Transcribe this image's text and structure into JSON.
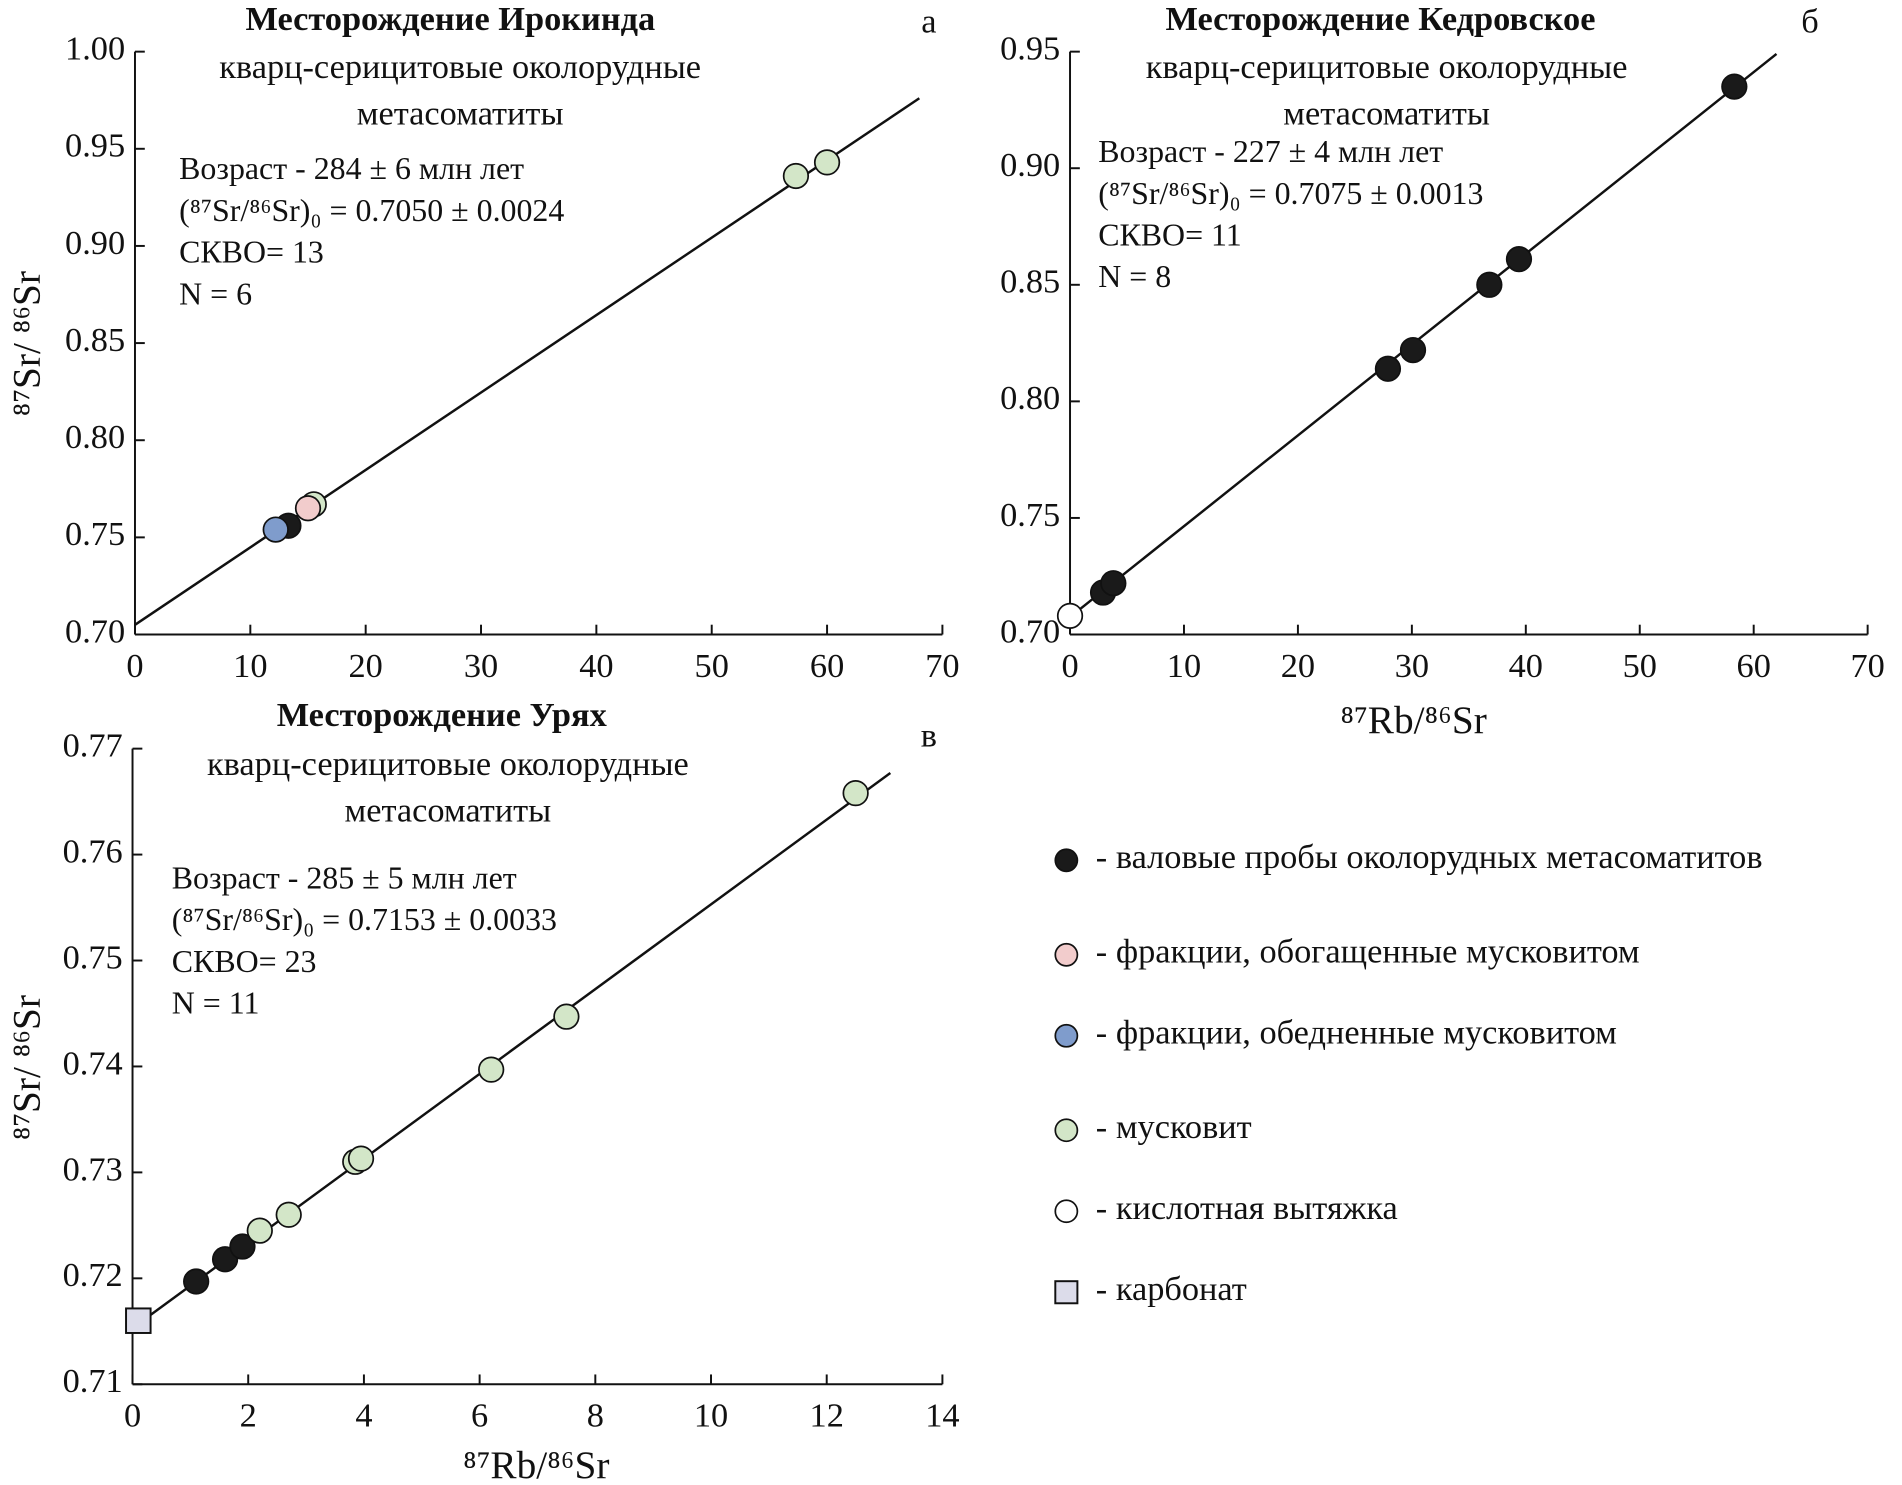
{
  "chart_data": [
    {
      "type": "scatter",
      "title": "Месторождение Ирокинда",
      "subtitle": [
        "кварц-серицитовые околорудные",
        "метасоматиты"
      ],
      "panel": "а",
      "annotations": [
        "Возраст - 284 ± 6 млн лет",
        "(⁸⁷Sr/⁸⁶Sr)₀ = 0.7050 ± 0.0024",
        "СКВО= 13",
        "N = 6"
      ],
      "ylabel": "⁸⁷Sr/ ⁸⁶Sr",
      "xlim": [
        0,
        70
      ],
      "ylim": [
        0.7,
        1.0
      ],
      "xticks": [
        0,
        10,
        20,
        30,
        40,
        50,
        60,
        70
      ],
      "yticks": [
        {
          "value": 0.7,
          "label": "0.70"
        },
        0.75,
        {
          "value": 0.8,
          "label": "0.80"
        },
        0.85,
        {
          "value": 0.9,
          "label": "0.90"
        },
        0.95,
        {
          "value": 1.0,
          "label": "1.00"
        }
      ],
      "fit": {
        "x": [
          0,
          68
        ],
        "values": [
          0.705,
          0.976
        ]
      },
      "series": [
        {
          "color": "#d3e6c8",
          "marker": "circle",
          "x": [
            15.5,
            57.3,
            60
          ],
          "values": [
            0.767,
            0.936,
            0.943
          ]
        },
        {
          "color": "#1a1a1a",
          "marker": "circle",
          "x": [
            13.3
          ],
          "values": [
            0.756
          ]
        },
        {
          "color": "#7f9ccc",
          "marker": "circle",
          "x": [
            12.2
          ],
          "values": [
            0.754
          ]
        },
        {
          "color": "#f2cccc",
          "marker": "circle",
          "x": [
            15
          ],
          "values": [
            0.765
          ]
        }
      ]
    },
    {
      "type": "scatter",
      "title": "Месторождение Кедровское",
      "subtitle": [
        "кварц-серицитовые околорудные",
        "метасоматиты"
      ],
      "panel": "б",
      "annotations": [
        "Возраст - 227 ± 4 млн лет",
        "(⁸⁷Sr/⁸⁶Sr)₀ = 0.7075 ± 0.0013",
        "СКВО= 11",
        "N = 8"
      ],
      "xlabel": "⁸⁷Rb/⁸⁶Sr",
      "xlim": [
        0,
        70
      ],
      "ylim": [
        0.7,
        0.95
      ],
      "xticks": [
        0,
        10,
        20,
        30,
        40,
        50,
        60,
        70
      ],
      "yticks": [
        {
          "value": 0.7,
          "label": "0.70"
        },
        0.75,
        {
          "value": 0.8,
          "label": "0.80"
        },
        0.85,
        {
          "value": 0.9,
          "label": "0.90"
        },
        0.95
      ],
      "fit": {
        "x": [
          0,
          62
        ],
        "values": [
          0.7075,
          0.949
        ]
      },
      "series": [
        {
          "color": "#ffffff",
          "marker": "circle",
          "x": [
            0
          ],
          "values": [
            0.708
          ]
        },
        {
          "color": "#1a1a1a",
          "marker": "circle",
          "x": [
            2.9,
            3.8,
            27.9,
            30.1,
            36.8,
            39.4,
            58.3
          ],
          "values": [
            0.718,
            0.722,
            0.814,
            0.822,
            0.85,
            0.861,
            0.935
          ]
        }
      ]
    },
    {
      "type": "scatter",
      "title": "Месторождение Урях",
      "subtitle": [
        "кварц-серицитовые околорудные",
        "метасоматиты"
      ],
      "panel": "в",
      "annotations": [
        "Возраст - 285 ± 5 млн лет",
        "(⁸⁷Sr/⁸⁶Sr)₀ = 0.7153 ± 0.0033",
        "СКВО= 23",
        "N = 11"
      ],
      "xlabel": "⁸⁷Rb/⁸⁶Sr",
      "ylabel": "⁸⁷Sr/ ⁸⁶Sr",
      "xlim": [
        0,
        14
      ],
      "ylim": [
        0.71,
        0.77
      ],
      "xticks": [
        0,
        2,
        4,
        6,
        8,
        10,
        12,
        14
      ],
      "yticks": [
        0.71,
        0.72,
        0.73,
        0.74,
        0.75,
        0.76,
        0.77
      ],
      "fit": {
        "x": [
          0,
          13.1
        ],
        "values": [
          0.7153,
          0.7677
        ]
      },
      "series": [
        {
          "color": "#dcdcea",
          "marker": "square",
          "x": [
            0.1
          ],
          "values": [
            0.716
          ]
        },
        {
          "color": "#1a1a1a",
          "marker": "circle",
          "x": [
            1.1,
            1.6,
            1.9
          ],
          "values": [
            0.7197,
            0.7218,
            0.723
          ]
        },
        {
          "color": "#d3e6c8",
          "marker": "circle",
          "x": [
            2.2,
            2.7,
            3.85,
            3.95,
            6.2,
            7.5,
            12.5
          ],
          "values": [
            0.7245,
            0.726,
            0.731,
            0.7313,
            0.7397,
            0.7447,
            0.7658
          ]
        }
      ]
    }
  ],
  "legend": [
    {
      "label": "- валовые пробы околорудных метасоматитов",
      "color": "#1a1a1a",
      "marker": "circle"
    },
    {
      "label": "- фракции, обогащенные мусковитом",
      "color": "#f2cccc",
      "marker": "circle"
    },
    {
      "label": "- фракции, обедненные мусковитом",
      "color": "#7f9ccc",
      "marker": "circle"
    },
    {
      "label": "- мусковит",
      "color": "#d3e6c8",
      "marker": "circle"
    },
    {
      "label": "- кислотная вытяжка",
      "color": "#ffffff",
      "marker": "circle"
    },
    {
      "label": "- карбонат",
      "color": "#dcdcea",
      "marker": "square"
    }
  ]
}
